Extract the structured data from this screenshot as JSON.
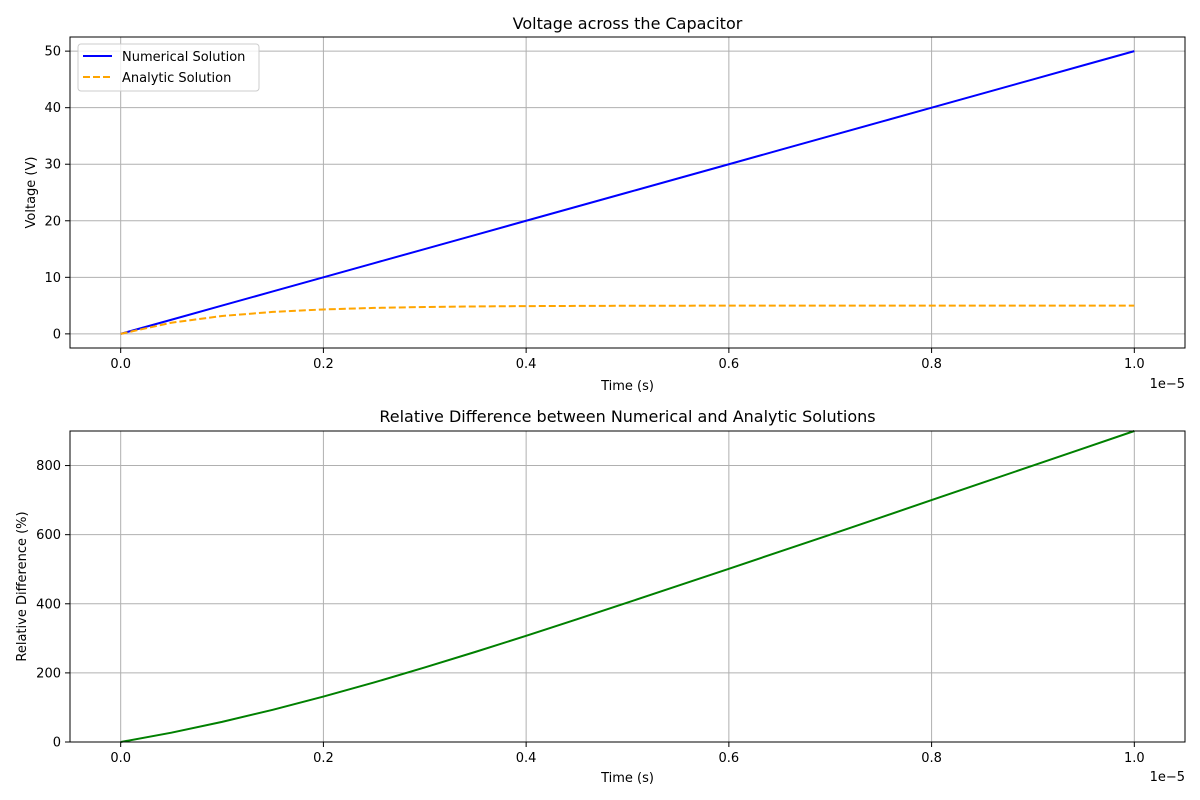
{
  "figure": {
    "background": "#ffffff"
  },
  "chart_data": [
    {
      "type": "line",
      "title": "Voltage across the Capacitor",
      "xlabel": "Time (s)",
      "ylabel": "Voltage (V)",
      "x_offset_label": "1e−5",
      "xlim": [
        -0.05,
        1.05
      ],
      "ylim": [
        -2.5,
        52.5
      ],
      "xticks": [
        0.0,
        0.2,
        0.4,
        0.6,
        0.8,
        1.0
      ],
      "xtick_labels": [
        "0.0",
        "0.2",
        "0.4",
        "0.6",
        "0.8",
        "1.0"
      ],
      "yticks": [
        0,
        10,
        20,
        30,
        40,
        50
      ],
      "ytick_labels": [
        "0",
        "10",
        "20",
        "30",
        "40",
        "50"
      ],
      "grid": true,
      "legend": "top-left",
      "x": [
        0.0,
        0.05,
        0.1,
        0.15,
        0.2,
        0.25,
        0.3,
        0.35,
        0.4,
        0.45,
        0.5,
        0.55,
        0.6,
        0.65,
        0.7,
        0.75,
        0.8,
        0.85,
        0.9,
        0.95,
        1.0
      ],
      "series": [
        {
          "name": "Numerical Solution",
          "color": "#0000ff",
          "style": "solid",
          "values": [
            0,
            2.5,
            5,
            7.5,
            10,
            12.5,
            15,
            17.5,
            20,
            22.5,
            25,
            27.5,
            30,
            32.5,
            35,
            37.5,
            40,
            42.5,
            45,
            47.5,
            50
          ]
        },
        {
          "name": "Analytic Solution",
          "color": "#ffa500",
          "style": "dashed",
          "values": [
            0,
            1.97,
            3.16,
            3.88,
            4.32,
            4.59,
            4.75,
            4.85,
            4.91,
            4.94,
            4.97,
            4.98,
            4.99,
            4.99,
            5.0,
            5.0,
            5.0,
            5.0,
            5.0,
            5.0,
            5.0
          ]
        }
      ]
    },
    {
      "type": "line",
      "title": "Relative Difference between Numerical and Analytic Solutions",
      "xlabel": "Time (s)",
      "ylabel": "Relative Difference (%)",
      "x_offset_label": "1e−5",
      "xlim": [
        -0.05,
        1.05
      ],
      "ylim": [
        0,
        900
      ],
      "xticks": [
        0.0,
        0.2,
        0.4,
        0.6,
        0.8,
        1.0
      ],
      "xtick_labels": [
        "0.0",
        "0.2",
        "0.4",
        "0.6",
        "0.8",
        "1.0"
      ],
      "yticks": [
        0,
        200,
        400,
        600,
        800
      ],
      "ytick_labels": [
        "0",
        "200",
        "400",
        "600",
        "800"
      ],
      "grid": true,
      "x": [
        0.0,
        0.05,
        0.1,
        0.15,
        0.2,
        0.25,
        0.3,
        0.35,
        0.4,
        0.45,
        0.5,
        0.55,
        0.6,
        0.65,
        0.7,
        0.75,
        0.8,
        0.85,
        0.9,
        0.95,
        1.0
      ],
      "series": [
        {
          "color": "#008000",
          "style": "solid",
          "values": [
            0,
            26.9,
            58.2,
            93.2,
            131.5,
            172.3,
            215.8,
            260.8,
            307.3,
            355.1,
            403.5,
            452.3,
            501.2,
            550.8,
            600.0,
            650.0,
            700.0,
            750.0,
            800.0,
            850.0,
            900.0
          ]
        }
      ]
    }
  ]
}
